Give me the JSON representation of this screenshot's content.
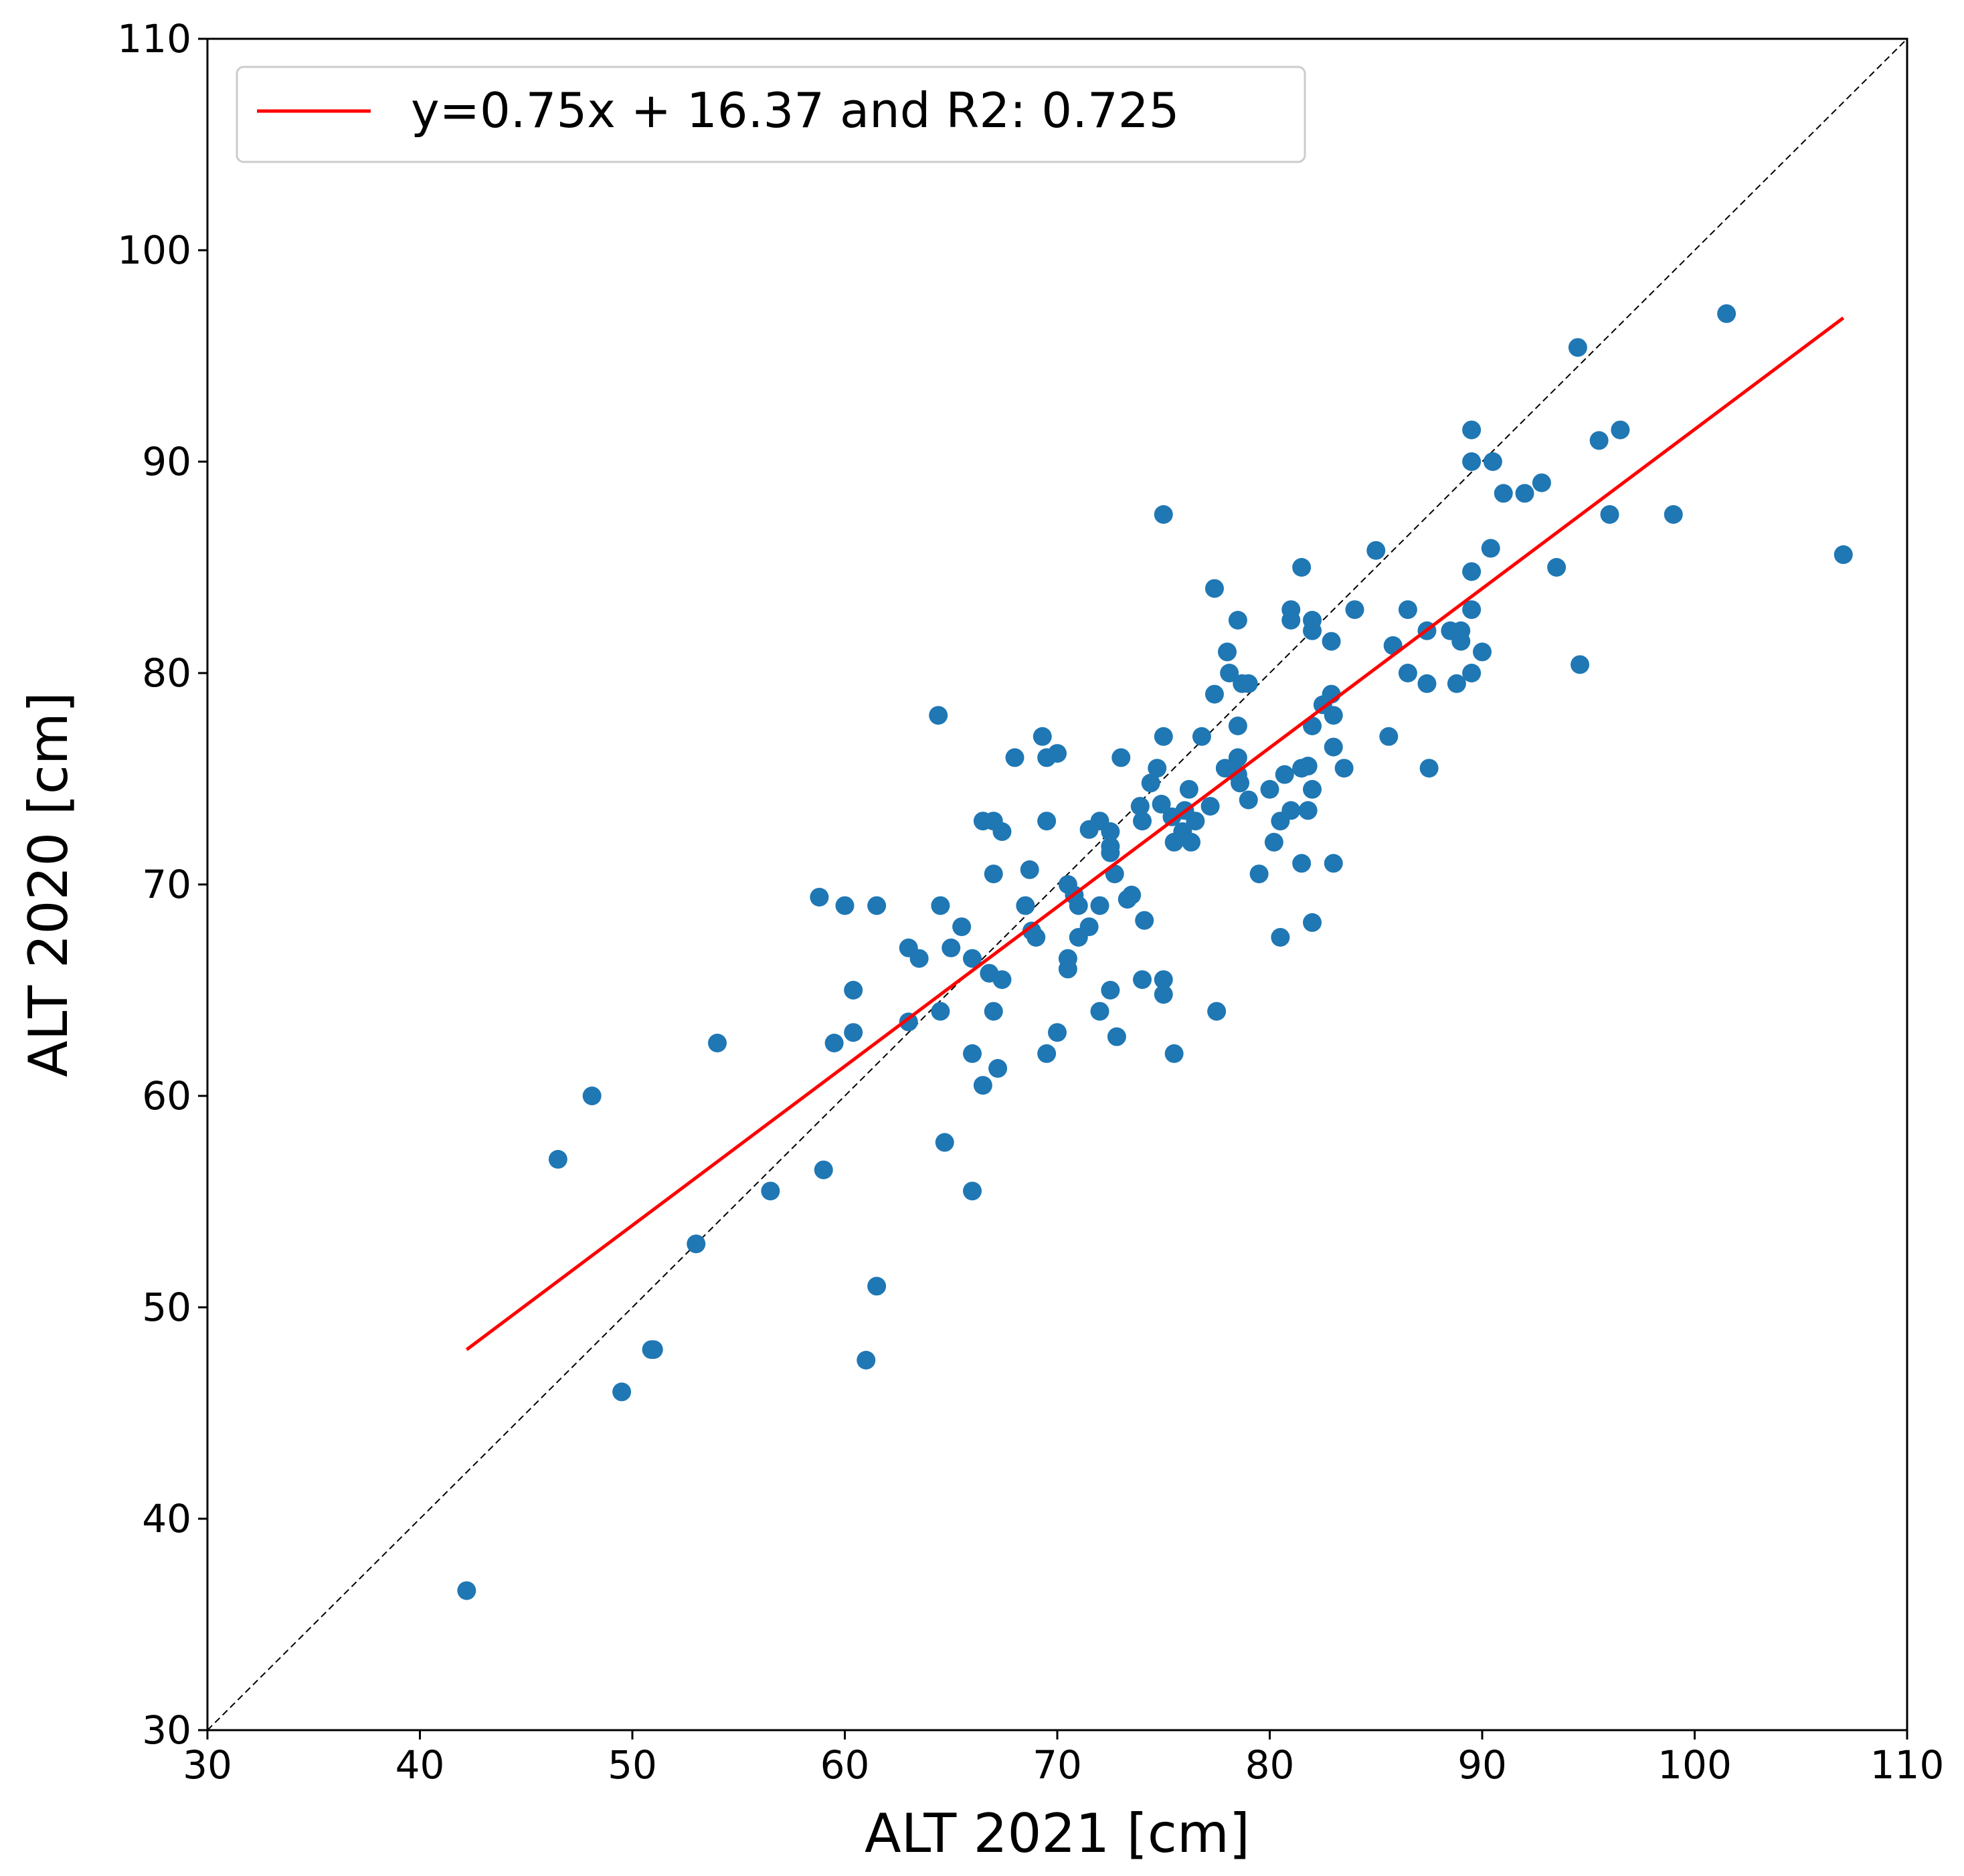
{
  "chart_data": {
    "type": "scatter",
    "xlabel": "ALT 2021  [cm]",
    "ylabel": "ALT 2020  [cm]",
    "xlim": [
      30,
      110
    ],
    "ylim": [
      30,
      110
    ],
    "xticks": [
      "30",
      "40",
      "50",
      "60",
      "70",
      "80",
      "90",
      "100",
      "110"
    ],
    "yticks": [
      "30",
      "40",
      "50",
      "60",
      "70",
      "80",
      "90",
      "100",
      "110"
    ],
    "grid": false,
    "legend_position": "top-left",
    "colors": {
      "points": "#1f77b4",
      "fit": "#ff0000",
      "identity": "#000000"
    },
    "identity_line": {
      "x": [
        30,
        110
      ],
      "y": [
        30,
        110
      ],
      "style": "dashed"
    },
    "fit_line": {
      "label": "y=0.75x + 16.37 and R2: 0.725",
      "x": [
        42.2,
        107
      ],
      "y": [
        48.0,
        96.8
      ]
    },
    "series": [
      {
        "points": [
          [
            42.2,
            36.6
          ],
          [
            46.5,
            57.0
          ],
          [
            48.1,
            60.0
          ],
          [
            49.5,
            46.0
          ],
          [
            50.9,
            48.0
          ],
          [
            51.0,
            48.0
          ],
          [
            53.0,
            53.0
          ],
          [
            54.0,
            62.5
          ],
          [
            56.5,
            55.5
          ],
          [
            58.8,
            69.4
          ],
          [
            59.0,
            56.5
          ],
          [
            59.5,
            62.5
          ],
          [
            60.0,
            69.0
          ],
          [
            60.4,
            65.0
          ],
          [
            60.4,
            63.0
          ],
          [
            61.0,
            47.5
          ],
          [
            61.5,
            51.0
          ],
          [
            61.5,
            69.0
          ],
          [
            63.0,
            67.0
          ],
          [
            63.0,
            63.5
          ],
          [
            63.5,
            66.5
          ],
          [
            64.4,
            78.0
          ],
          [
            64.5,
            69.0
          ],
          [
            64.5,
            64.0
          ],
          [
            64.7,
            57.8
          ],
          [
            65.0,
            67.0
          ],
          [
            65.5,
            68.0
          ],
          [
            66.0,
            66.5
          ],
          [
            66.0,
            62.0
          ],
          [
            66.0,
            55.5
          ],
          [
            66.5,
            73.0
          ],
          [
            66.5,
            60.5
          ],
          [
            66.8,
            65.8
          ],
          [
            67.0,
            73.0
          ],
          [
            67.0,
            70.5
          ],
          [
            67.0,
            64.0
          ],
          [
            67.2,
            61.3
          ],
          [
            67.4,
            72.5
          ],
          [
            67.4,
            65.5
          ],
          [
            68.0,
            76.0
          ],
          [
            68.5,
            69.0
          ],
          [
            68.7,
            70.7
          ],
          [
            68.8,
            67.8
          ],
          [
            69.0,
            67.5
          ],
          [
            69.3,
            77.0
          ],
          [
            69.5,
            76.0
          ],
          [
            69.5,
            73.0
          ],
          [
            69.5,
            62.0
          ],
          [
            70.0,
            76.2
          ],
          [
            70.0,
            63.0
          ],
          [
            70.5,
            70.0
          ],
          [
            70.5,
            66.5
          ],
          [
            70.5,
            66.0
          ],
          [
            70.8,
            69.5
          ],
          [
            71.0,
            69.0
          ],
          [
            71.0,
            67.5
          ],
          [
            71.5,
            72.6
          ],
          [
            71.5,
            68.0
          ],
          [
            72.0,
            73.0
          ],
          [
            72.0,
            69.0
          ],
          [
            72.0,
            64.0
          ],
          [
            72.5,
            72.5
          ],
          [
            72.5,
            71.8
          ],
          [
            72.5,
            71.5
          ],
          [
            72.5,
            65.0
          ],
          [
            72.7,
            70.5
          ],
          [
            72.8,
            62.8
          ],
          [
            73.0,
            76.0
          ],
          [
            73.3,
            69.3
          ],
          [
            73.5,
            69.5
          ],
          [
            73.9,
            73.7
          ],
          [
            74.0,
            73.0
          ],
          [
            74.0,
            65.5
          ],
          [
            74.1,
            68.3
          ],
          [
            74.4,
            74.8
          ],
          [
            74.7,
            75.5
          ],
          [
            74.9,
            73.8
          ],
          [
            75.0,
            87.5
          ],
          [
            75.0,
            77.0
          ],
          [
            75.0,
            65.5
          ],
          [
            75.0,
            64.8
          ],
          [
            75.4,
            73.2
          ],
          [
            75.5,
            72.0
          ],
          [
            75.5,
            62.0
          ],
          [
            75.9,
            72.5
          ],
          [
            76.0,
            73.5
          ],
          [
            76.2,
            74.5
          ],
          [
            76.3,
            72.0
          ],
          [
            76.5,
            73.0
          ],
          [
            76.8,
            77.0
          ],
          [
            77.2,
            73.7
          ],
          [
            77.4,
            84.0
          ],
          [
            77.4,
            79.0
          ],
          [
            77.5,
            64.0
          ],
          [
            77.9,
            75.5
          ],
          [
            78.0,
            81.0
          ],
          [
            78.1,
            80.0
          ],
          [
            78.5,
            82.5
          ],
          [
            78.5,
            77.5
          ],
          [
            78.5,
            76.0
          ],
          [
            78.5,
            75.2
          ],
          [
            78.6,
            74.8
          ],
          [
            78.7,
            79.5
          ],
          [
            79.0,
            79.5
          ],
          [
            79.0,
            74.0
          ],
          [
            79.5,
            70.5
          ],
          [
            80.0,
            74.5
          ],
          [
            80.2,
            72.0
          ],
          [
            80.5,
            73.0
          ],
          [
            80.5,
            67.5
          ],
          [
            80.7,
            75.2
          ],
          [
            81.0,
            83.0
          ],
          [
            81.0,
            82.5
          ],
          [
            81.0,
            73.5
          ],
          [
            81.5,
            85.0
          ],
          [
            81.5,
            75.5
          ],
          [
            81.5,
            71.0
          ],
          [
            81.8,
            75.6
          ],
          [
            81.8,
            73.5
          ],
          [
            82.0,
            82.5
          ],
          [
            82.0,
            82.0
          ],
          [
            82.0,
            77.5
          ],
          [
            82.0,
            74.5
          ],
          [
            82.0,
            68.2
          ],
          [
            82.5,
            78.5
          ],
          [
            82.9,
            81.5
          ],
          [
            82.9,
            79.0
          ],
          [
            83.0,
            78.0
          ],
          [
            83.0,
            76.5
          ],
          [
            83.0,
            71.0
          ],
          [
            83.5,
            75.5
          ],
          [
            84.0,
            83.0
          ],
          [
            85.0,
            85.8
          ],
          [
            85.6,
            77.0
          ],
          [
            85.8,
            81.3
          ],
          [
            86.5,
            83.0
          ],
          [
            86.5,
            80.0
          ],
          [
            87.4,
            82.0
          ],
          [
            87.4,
            79.5
          ],
          [
            87.5,
            75.5
          ],
          [
            88.5,
            82.0
          ],
          [
            88.8,
            79.5
          ],
          [
            89.0,
            82.0
          ],
          [
            89.0,
            81.5
          ],
          [
            89.5,
            91.5
          ],
          [
            89.5,
            90.0
          ],
          [
            89.5,
            84.8
          ],
          [
            89.5,
            83.0
          ],
          [
            89.5,
            80.0
          ],
          [
            90.0,
            81.0
          ],
          [
            90.4,
            85.9
          ],
          [
            90.5,
            90.0
          ],
          [
            91.0,
            88.5
          ],
          [
            92.0,
            88.5
          ],
          [
            92.8,
            89.0
          ],
          [
            93.5,
            85.0
          ],
          [
            94.5,
            95.4
          ],
          [
            94.6,
            80.4
          ],
          [
            95.5,
            91.0
          ],
          [
            96.0,
            87.5
          ],
          [
            96.5,
            91.5
          ],
          [
            99.0,
            87.5
          ],
          [
            101.5,
            97.0
          ],
          [
            107.0,
            85.6
          ]
        ]
      }
    ]
  }
}
